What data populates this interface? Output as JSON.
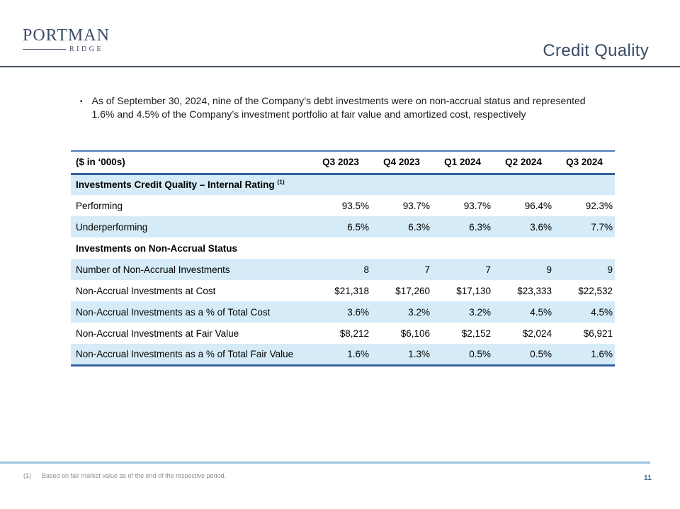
{
  "logo": {
    "primary": "PORTMAN",
    "secondary": "RIDGE"
  },
  "header": {
    "title": "Credit Quality"
  },
  "bullet": {
    "marker": "▪",
    "text": "As of September 30, 2024, nine of the Company’s debt investments were on non-accrual status and represented 1.6% and 4.5% of the Company’s investment portfolio at fair value and amortized cost, respectively"
  },
  "table": {
    "label_header": "($ in ‘000s)",
    "columns": [
      "Q3 2023",
      "Q4 2023",
      "Q1 2024",
      "Q2 2024",
      "Q3 2024"
    ],
    "rows": [
      {
        "type": "section",
        "label": "Investments Credit Quality – Internal Rating",
        "superscript": "(1)",
        "shaded": true
      },
      {
        "type": "data",
        "label": "Performing",
        "values": [
          "93.5%",
          "93.7%",
          "93.7%",
          "96.4%",
          "92.3%"
        ],
        "shaded": false
      },
      {
        "type": "data",
        "label": "Underperforming",
        "values": [
          "6.5%",
          "6.3%",
          "6.3%",
          "3.6%",
          "7.7%"
        ],
        "shaded": true
      },
      {
        "type": "section",
        "label": "Investments on Non-Accrual Status",
        "superscript": "",
        "shaded": false
      },
      {
        "type": "data",
        "label": "Number of Non-Accrual Investments",
        "values": [
          "8",
          "7",
          "7",
          "9",
          "9"
        ],
        "shaded": true
      },
      {
        "type": "data",
        "label": "Non-Accrual Investments at Cost",
        "values": [
          "$21,318",
          "$17,260",
          "$17,130",
          "$23,333",
          "$22,532"
        ],
        "shaded": false
      },
      {
        "type": "data",
        "label": "Non-Accrual Investments as a % of Total Cost",
        "values": [
          "3.6%",
          "3.2%",
          "3.2%",
          "4.5%",
          "4.5%"
        ],
        "shaded": true
      },
      {
        "type": "data",
        "label": "Non-Accrual Investments at Fair Value",
        "values": [
          "$8,212",
          "$6,106",
          "$2,152",
          "$2,024",
          "$6,921"
        ],
        "shaded": false
      },
      {
        "type": "data",
        "label": "Non-Accrual Investments as a % of Total Fair Value",
        "values": [
          "1.6%",
          "1.3%",
          "0.5%",
          "0.5%",
          "1.6%"
        ],
        "shaded": true
      }
    ]
  },
  "footer": {
    "footnote_marker": "(1)",
    "footnote_text": "Based on fair market value as of the end of the respective period.",
    "page_number": "11"
  },
  "colors": {
    "brand_navy": "#3d4d66",
    "title_navy": "#3a4b63",
    "header_rule": "#44546a",
    "table_rule_blue": "#35619f",
    "table_rule_light_blue": "#4e7bb7",
    "row_shade_blue": "#d5ecf8",
    "footer_rule_blue": "#9cc4de",
    "footnote_gray": "#8c8c8c",
    "page_number_blue": "#4e6e93"
  }
}
